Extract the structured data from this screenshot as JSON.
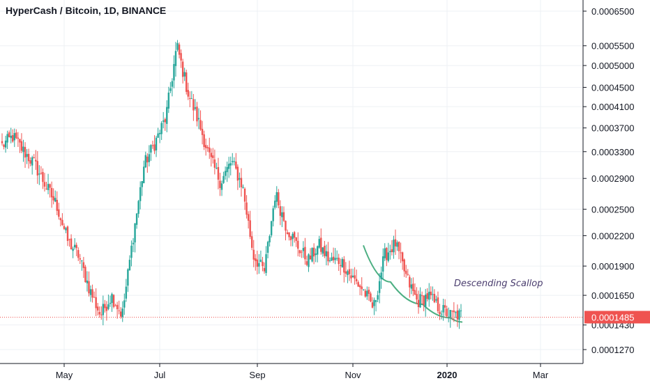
{
  "chart_data": {
    "type": "candlestick",
    "title": "HyperCash / Bitcoin, 1D, BINANCE",
    "y_scale": "log",
    "ylim": [
      0.000118,
      0.000665
    ],
    "y_ticks": [
      "0.0006500",
      "0.0005500",
      "0.0005000",
      "0.0004500",
      "0.0004100",
      "0.0003700",
      "0.0003300",
      "0.0002900",
      "0.0002500",
      "0.0002200",
      "0.0001900",
      "0.0001650",
      "0.0001430",
      "0.0001270"
    ],
    "x_ticks": [
      {
        "label": "May",
        "bold": false
      },
      {
        "label": "Jul",
        "bold": false
      },
      {
        "label": "Sep",
        "bold": false
      },
      {
        "label": "Nov",
        "bold": false
      },
      {
        "label": "2020",
        "bold": true
      },
      {
        "label": "Mar",
        "bold": false
      }
    ],
    "last_price": {
      "value": 0.0001485,
      "label": "0.0001485"
    },
    "colors": {
      "up": "#26a69a",
      "down": "#ef5350",
      "pattern": "#4caf82",
      "price_line": "#ef5350",
      "annotation": "#4a3d6e"
    },
    "annotation": {
      "text": "Descending Scallop"
    },
    "pattern": {
      "name": "Descending Scallop",
      "points": [
        [
          0.00021,
          0
        ],
        [
          0.000176,
          0.25
        ],
        [
          0.000158,
          0.55
        ],
        [
          0.000148,
          0.85
        ],
        [
          0.000145,
          1
        ]
      ]
    },
    "anchors": [
      {
        "v": 0.00034
      },
      {
        "v": 0.000355
      },
      {
        "v": 0.00033
      },
      {
        "v": 0.00031
      },
      {
        "v": 0.00028
      },
      {
        "v": 0.000255
      },
      {
        "v": 0.000215
      },
      {
        "v": 0.0002
      },
      {
        "v": 0.00017
      },
      {
        "v": 0.00015
      },
      {
        "v": 0.000165
      },
      {
        "v": 0.00015
      },
      {
        "v": 0.00022
      },
      {
        "v": 0.00031
      },
      {
        "v": 0.000345
      },
      {
        "v": 0.00039
      },
      {
        "v": 0.00055
      },
      {
        "v": 0.00044
      },
      {
        "v": 0.00038
      },
      {
        "v": 0.00032
      },
      {
        "v": 0.000285
      },
      {
        "v": 0.000315
      },
      {
        "v": 0.00028
      },
      {
        "v": 0.0002
      },
      {
        "v": 0.000185
      },
      {
        "v": 0.00027
      },
      {
        "v": 0.00023
      },
      {
        "v": 0.00021
      },
      {
        "v": 0.000195
      },
      {
        "v": 0.00021
      },
      {
        "v": 0.000195
      },
      {
        "v": 0.000195
      },
      {
        "v": 0.00018
      },
      {
        "v": 0.00017
      },
      {
        "v": 0.000155
      },
      {
        "v": 0.0002
      },
      {
        "v": 0.000212
      },
      {
        "v": 0.00018
      },
      {
        "v": 0.00016
      },
      {
        "v": 0.000165
      },
      {
        "v": 0.000155
      },
      {
        "v": 0.00015
      },
      {
        "v": 0.00015
      }
    ]
  }
}
